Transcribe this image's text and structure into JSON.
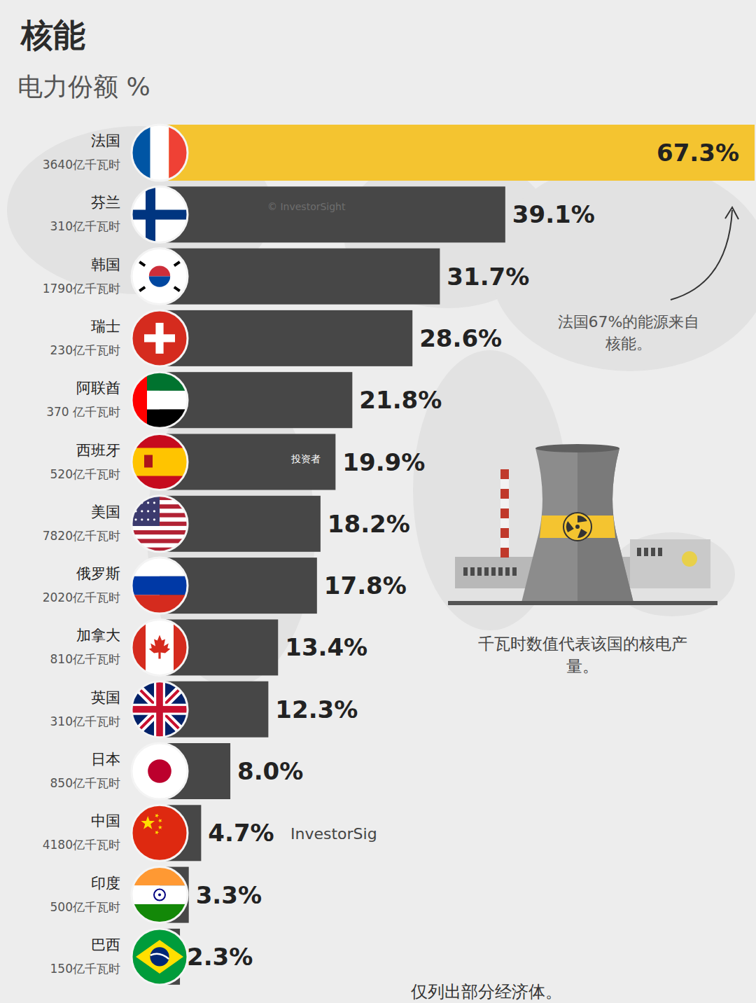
{
  "chart_data": {
    "type": "bar",
    "orientation": "horizontal",
    "title": "核能",
    "subtitle": "电力份额 %",
    "categories": [
      "法国",
      "芬兰",
      "韩国",
      "瑞士",
      "阿联酋",
      "西班牙",
      "美国",
      "俄罗斯",
      "加拿大",
      "英国",
      "日本",
      "中国",
      "印度",
      "巴西"
    ],
    "production": [
      "3640亿千瓦时",
      "310亿千瓦时",
      "1790亿千瓦时",
      "230亿千瓦时",
      "370 亿千瓦时",
      "520亿千瓦时",
      "7820亿千瓦时",
      "2020亿千瓦时",
      "810亿千瓦时",
      "310亿千瓦时",
      "850亿千瓦时",
      "4180亿千瓦时",
      "500亿千瓦时",
      "150亿千瓦时"
    ],
    "values": [
      67.3,
      39.1,
      31.7,
      28.6,
      21.8,
      19.9,
      18.2,
      17.8,
      13.4,
      12.3,
      8.0,
      4.7,
      3.3,
      2.3
    ],
    "value_labels": [
      "67.3%",
      "39.1%",
      "31.7%",
      "28.6%",
      "21.8%",
      "19.9%",
      "18.2%",
      "17.8%",
      "13.4%",
      "12.3%",
      "8.0%",
      "4.7%",
      "3.3%",
      "2.3%"
    ],
    "colors": [
      "#f4c430",
      "#474747",
      "#474747",
      "#474747",
      "#474747",
      "#474747",
      "#474747",
      "#474747",
      "#474747",
      "#474747",
      "#474747",
      "#474747",
      "#474747",
      "#474747"
    ],
    "xlim": [
      0,
      67.3
    ],
    "data_labels": true,
    "tick_labels": false,
    "grid": false,
    "annotations": [
      "法国67%的能源来自核能。",
      "千瓦时数值代表该国的核电产量。",
      "仅列出部分经济体。"
    ],
    "watermarks": [
      "© InvestorSight",
      "投资者",
      "InvestorSig"
    ]
  }
}
